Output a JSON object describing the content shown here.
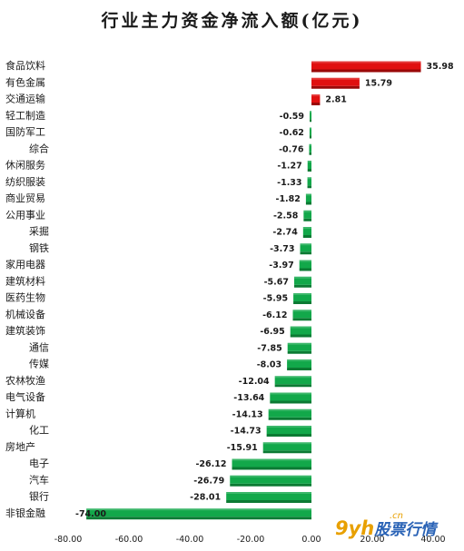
{
  "chart_data": {
    "type": "bar",
    "orientation": "horizontal",
    "title": "行业主力资金净流入额(亿元)",
    "xlim": [
      -80,
      40
    ],
    "xticks": [
      "-80.00",
      "-60.00",
      "-40.00",
      "-20.00",
      "0.00",
      "20.00",
      "40.00"
    ],
    "grid": false,
    "legend": "none",
    "categories": [
      "食品饮料",
      "有色金属",
      "交通运输",
      "轻工制造",
      "国防军工",
      "综合",
      "休闲服务",
      "纺织服装",
      "商业贸易",
      "公用事业",
      "采掘",
      "钢铁",
      "家用电器",
      "建筑材料",
      "医药生物",
      "机械设备",
      "建筑装饰",
      "通信",
      "传媒",
      "农林牧渔",
      "电气设备",
      "计算机",
      "化工",
      "房地产",
      "电子",
      "汽车",
      "银行",
      "非银金融"
    ],
    "values": [
      35.98,
      15.79,
      2.81,
      -0.59,
      -0.62,
      -0.76,
      -1.27,
      -1.33,
      -1.82,
      -2.58,
      -2.74,
      -3.73,
      -3.97,
      -5.67,
      -5.95,
      -6.12,
      -6.95,
      -7.85,
      -8.03,
      -12.04,
      -13.64,
      -14.13,
      -14.73,
      -15.91,
      -26.12,
      -26.79,
      -28.01,
      -74.0
    ],
    "value_labels": [
      "35.98",
      "15.79",
      "2.81",
      "-0.59",
      "-0.62",
      "-0.76",
      "-1.27",
      "-1.33",
      "-1.82",
      "-2.58",
      "-2.74",
      "-3.73",
      "-3.97",
      "-5.67",
      "-5.95",
      "-6.12",
      "-6.95",
      "-7.85",
      "-8.03",
      "-12.04",
      "-13.64",
      "-14.13",
      "-14.73",
      "-15.91",
      "-26.12",
      "-26.79",
      "-28.01",
      "-74.00"
    ],
    "colors": {
      "positive": "#e01010",
      "negative": "#12a84a",
      "positive_dark": "#9a0808",
      "negative_dark": "#0b7a33"
    }
  },
  "watermark": {
    "logo": "9yh",
    "text": "股票行情",
    "domain": ".cn"
  }
}
